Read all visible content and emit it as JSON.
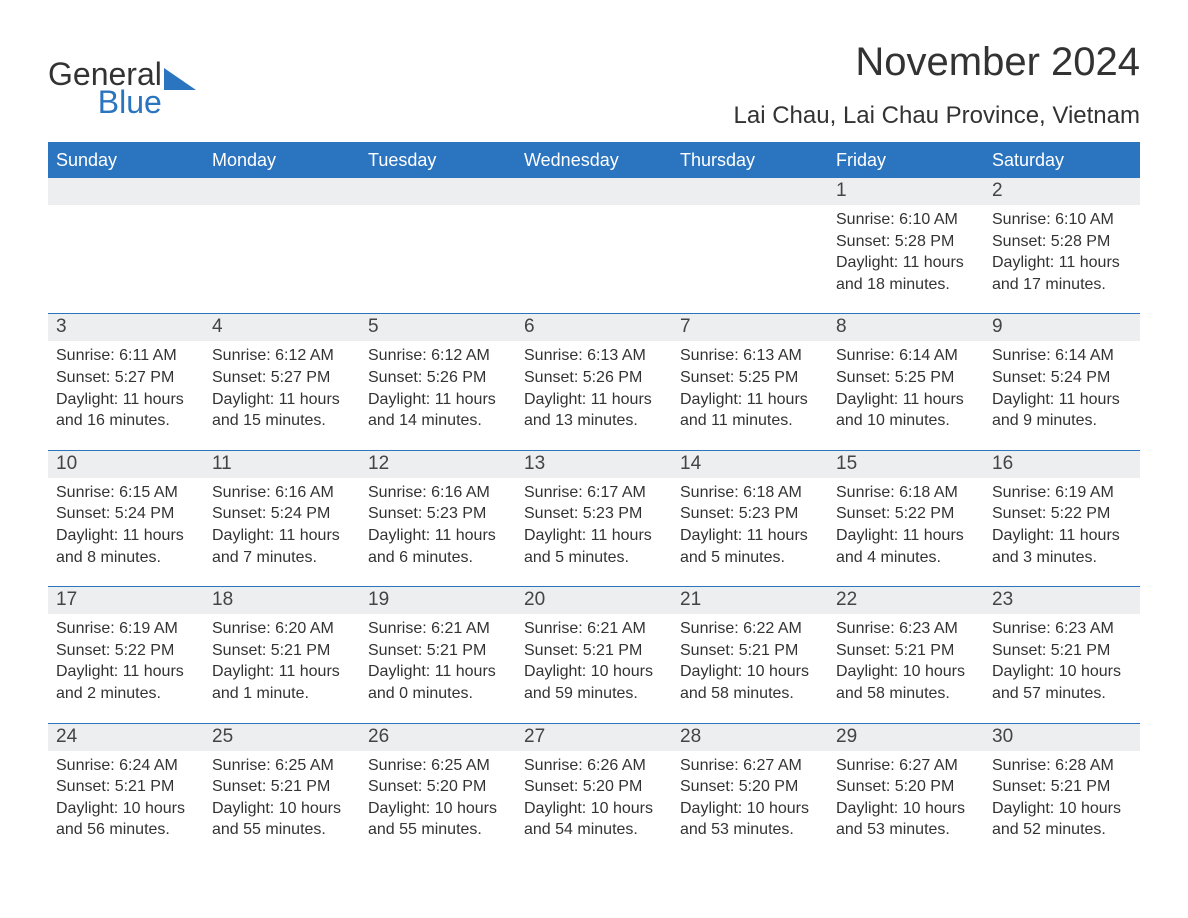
{
  "brand": {
    "text_general": "General",
    "text_blue": "Blue",
    "accent_color": "#2b74c0"
  },
  "header": {
    "month_title": "November 2024",
    "location": "Lai Chau, Lai Chau Province, Vietnam"
  },
  "calendar": {
    "type": "calendar",
    "header_bg": "#2b74c0",
    "header_text_color": "#ffffff",
    "daynum_bg": "#eceeef",
    "border_color": "#2b74c0",
    "text_color": "#333333",
    "background_color": "#ffffff",
    "fontsize_day": 19,
    "fontsize_detail": 16,
    "weekdays": [
      "Sunday",
      "Monday",
      "Tuesday",
      "Wednesday",
      "Thursday",
      "Friday",
      "Saturday"
    ],
    "weeks": [
      [
        null,
        null,
        null,
        null,
        null,
        {
          "day": "1",
          "sunrise": "Sunrise: 6:10 AM",
          "sunset": "Sunset: 5:28 PM",
          "daylight": "Daylight: 11 hours and 18 minutes."
        },
        {
          "day": "2",
          "sunrise": "Sunrise: 6:10 AM",
          "sunset": "Sunset: 5:28 PM",
          "daylight": "Daylight: 11 hours and 17 minutes."
        }
      ],
      [
        {
          "day": "3",
          "sunrise": "Sunrise: 6:11 AM",
          "sunset": "Sunset: 5:27 PM",
          "daylight": "Daylight: 11 hours and 16 minutes."
        },
        {
          "day": "4",
          "sunrise": "Sunrise: 6:12 AM",
          "sunset": "Sunset: 5:27 PM",
          "daylight": "Daylight: 11 hours and 15 minutes."
        },
        {
          "day": "5",
          "sunrise": "Sunrise: 6:12 AM",
          "sunset": "Sunset: 5:26 PM",
          "daylight": "Daylight: 11 hours and 14 minutes."
        },
        {
          "day": "6",
          "sunrise": "Sunrise: 6:13 AM",
          "sunset": "Sunset: 5:26 PM",
          "daylight": "Daylight: 11 hours and 13 minutes."
        },
        {
          "day": "7",
          "sunrise": "Sunrise: 6:13 AM",
          "sunset": "Sunset: 5:25 PM",
          "daylight": "Daylight: 11 hours and 11 minutes."
        },
        {
          "day": "8",
          "sunrise": "Sunrise: 6:14 AM",
          "sunset": "Sunset: 5:25 PM",
          "daylight": "Daylight: 11 hours and 10 minutes."
        },
        {
          "day": "9",
          "sunrise": "Sunrise: 6:14 AM",
          "sunset": "Sunset: 5:24 PM",
          "daylight": "Daylight: 11 hours and 9 minutes."
        }
      ],
      [
        {
          "day": "10",
          "sunrise": "Sunrise: 6:15 AM",
          "sunset": "Sunset: 5:24 PM",
          "daylight": "Daylight: 11 hours and 8 minutes."
        },
        {
          "day": "11",
          "sunrise": "Sunrise: 6:16 AM",
          "sunset": "Sunset: 5:24 PM",
          "daylight": "Daylight: 11 hours and 7 minutes."
        },
        {
          "day": "12",
          "sunrise": "Sunrise: 6:16 AM",
          "sunset": "Sunset: 5:23 PM",
          "daylight": "Daylight: 11 hours and 6 minutes."
        },
        {
          "day": "13",
          "sunrise": "Sunrise: 6:17 AM",
          "sunset": "Sunset: 5:23 PM",
          "daylight": "Daylight: 11 hours and 5 minutes."
        },
        {
          "day": "14",
          "sunrise": "Sunrise: 6:18 AM",
          "sunset": "Sunset: 5:23 PM",
          "daylight": "Daylight: 11 hours and 5 minutes."
        },
        {
          "day": "15",
          "sunrise": "Sunrise: 6:18 AM",
          "sunset": "Sunset: 5:22 PM",
          "daylight": "Daylight: 11 hours and 4 minutes."
        },
        {
          "day": "16",
          "sunrise": "Sunrise: 6:19 AM",
          "sunset": "Sunset: 5:22 PM",
          "daylight": "Daylight: 11 hours and 3 minutes."
        }
      ],
      [
        {
          "day": "17",
          "sunrise": "Sunrise: 6:19 AM",
          "sunset": "Sunset: 5:22 PM",
          "daylight": "Daylight: 11 hours and 2 minutes."
        },
        {
          "day": "18",
          "sunrise": "Sunrise: 6:20 AM",
          "sunset": "Sunset: 5:21 PM",
          "daylight": "Daylight: 11 hours and 1 minute."
        },
        {
          "day": "19",
          "sunrise": "Sunrise: 6:21 AM",
          "sunset": "Sunset: 5:21 PM",
          "daylight": "Daylight: 11 hours and 0 minutes."
        },
        {
          "day": "20",
          "sunrise": "Sunrise: 6:21 AM",
          "sunset": "Sunset: 5:21 PM",
          "daylight": "Daylight: 10 hours and 59 minutes."
        },
        {
          "day": "21",
          "sunrise": "Sunrise: 6:22 AM",
          "sunset": "Sunset: 5:21 PM",
          "daylight": "Daylight: 10 hours and 58 minutes."
        },
        {
          "day": "22",
          "sunrise": "Sunrise: 6:23 AM",
          "sunset": "Sunset: 5:21 PM",
          "daylight": "Daylight: 10 hours and 58 minutes."
        },
        {
          "day": "23",
          "sunrise": "Sunrise: 6:23 AM",
          "sunset": "Sunset: 5:21 PM",
          "daylight": "Daylight: 10 hours and 57 minutes."
        }
      ],
      [
        {
          "day": "24",
          "sunrise": "Sunrise: 6:24 AM",
          "sunset": "Sunset: 5:21 PM",
          "daylight": "Daylight: 10 hours and 56 minutes."
        },
        {
          "day": "25",
          "sunrise": "Sunrise: 6:25 AM",
          "sunset": "Sunset: 5:21 PM",
          "daylight": "Daylight: 10 hours and 55 minutes."
        },
        {
          "day": "26",
          "sunrise": "Sunrise: 6:25 AM",
          "sunset": "Sunset: 5:20 PM",
          "daylight": "Daylight: 10 hours and 55 minutes."
        },
        {
          "day": "27",
          "sunrise": "Sunrise: 6:26 AM",
          "sunset": "Sunset: 5:20 PM",
          "daylight": "Daylight: 10 hours and 54 minutes."
        },
        {
          "day": "28",
          "sunrise": "Sunrise: 6:27 AM",
          "sunset": "Sunset: 5:20 PM",
          "daylight": "Daylight: 10 hours and 53 minutes."
        },
        {
          "day": "29",
          "sunrise": "Sunrise: 6:27 AM",
          "sunset": "Sunset: 5:20 PM",
          "daylight": "Daylight: 10 hours and 53 minutes."
        },
        {
          "day": "30",
          "sunrise": "Sunrise: 6:28 AM",
          "sunset": "Sunset: 5:21 PM",
          "daylight": "Daylight: 10 hours and 52 minutes."
        }
      ]
    ]
  }
}
